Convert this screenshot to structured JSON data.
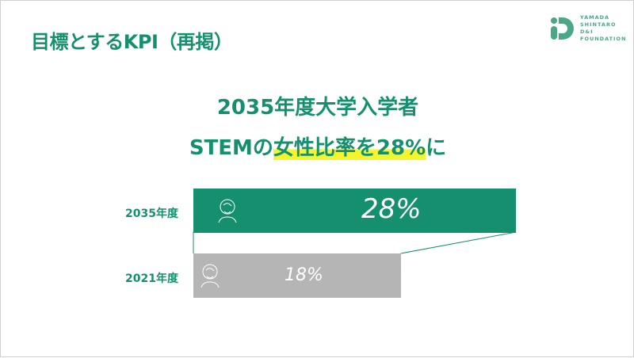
{
  "slide": {
    "title": "目標とするKPI（再掲）",
    "logo": {
      "lines": [
        "YAMADA",
        "SHINTARO",
        "D&I",
        "FOUNDATION"
      ]
    },
    "heading_line1": "2035年度大学入学者",
    "heading_line2_pre": "STEMの",
    "heading_line2_highlight": "女性比率を28%",
    "heading_line2_post": "に",
    "colors": {
      "brand": "#14906f",
      "highlight": "#f4f52a",
      "baseline_bar": "#b5b5b5"
    }
  },
  "chart_data": {
    "type": "bar",
    "orientation": "horizontal",
    "categories": [
      "2035年度",
      "2021年度"
    ],
    "values": [
      28,
      18
    ],
    "value_labels": [
      "28%",
      "18%"
    ],
    "icon": "woman-person-icon"
  }
}
